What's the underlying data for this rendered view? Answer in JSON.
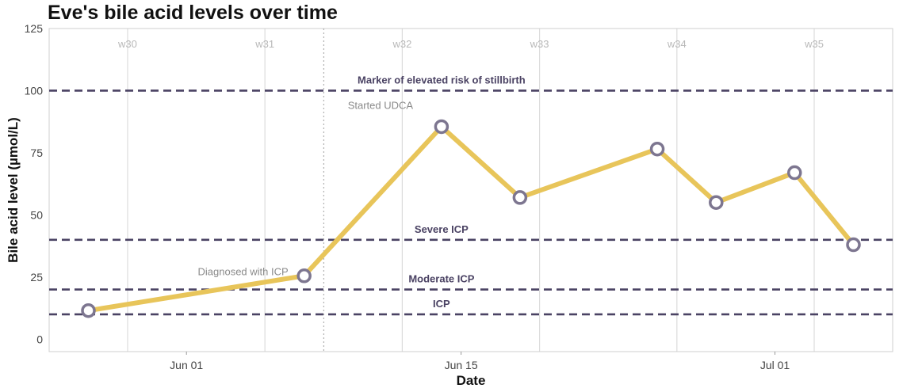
{
  "chart_data": {
    "type": "line",
    "title": "Eve's bile acid levels over time",
    "xlabel": "Date",
    "ylabel": "Bile acid level (µmol/L)",
    "x_type": "date",
    "xlim": [
      "2023-05-25",
      "2023-07-07"
    ],
    "ylim": [
      -5,
      125
    ],
    "y_ticks": [
      0,
      25,
      50,
      75,
      100,
      125
    ],
    "x_ticks": [
      {
        "date": "2023-06-01",
        "label": "Jun 01"
      },
      {
        "date": "2023-06-15",
        "label": "Jun 15"
      },
      {
        "date": "2023-07-01",
        "label": "Jul 01"
      }
    ],
    "grid": true,
    "week_markers": [
      {
        "date": "2023-05-29",
        "label": "w30"
      },
      {
        "date": "2023-06-05",
        "label": "w31"
      },
      {
        "date": "2023-06-12",
        "label": "w32"
      },
      {
        "date": "2023-06-19",
        "label": "w33"
      },
      {
        "date": "2023-06-26",
        "label": "w34"
      },
      {
        "date": "2023-07-03",
        "label": "w35"
      }
    ],
    "thresholds": [
      {
        "value": 100,
        "label": "Marker of elevated risk of stillbirth"
      },
      {
        "value": 40,
        "label": "Severe ICP"
      },
      {
        "value": 20,
        "label": "Moderate ICP"
      },
      {
        "value": 10,
        "label": "ICP"
      }
    ],
    "annotations": [
      {
        "date": "2023-06-07",
        "y": 27,
        "label": "Diagnosed with ICP"
      },
      {
        "date": "2023-06-10",
        "y": 94,
        "label": "Started UDCA",
        "vline_date": "2023-06-08"
      }
    ],
    "series": [
      {
        "color": "#e8c55a",
        "points": [
          {
            "date": "2023-05-27",
            "value": 11.5
          },
          {
            "date": "2023-06-07",
            "value": 25.5
          },
          {
            "date": "2023-06-14",
            "value": 85.5
          },
          {
            "date": "2023-06-18",
            "value": 57
          },
          {
            "date": "2023-06-25",
            "value": 76.5
          },
          {
            "date": "2023-06-28",
            "value": 55
          },
          {
            "date": "2023-07-02",
            "value": 67
          },
          {
            "date": "2023-07-05",
            "value": 38
          }
        ]
      }
    ],
    "colors": {
      "line": "#e8c55a",
      "marker_fill": "#ffffff",
      "marker_stroke": "#7d7690",
      "threshold": "#4a4263",
      "grid": "#dcdcdc",
      "week_text": "#b8b8b8",
      "annotation_text": "#8a8a8a"
    }
  }
}
